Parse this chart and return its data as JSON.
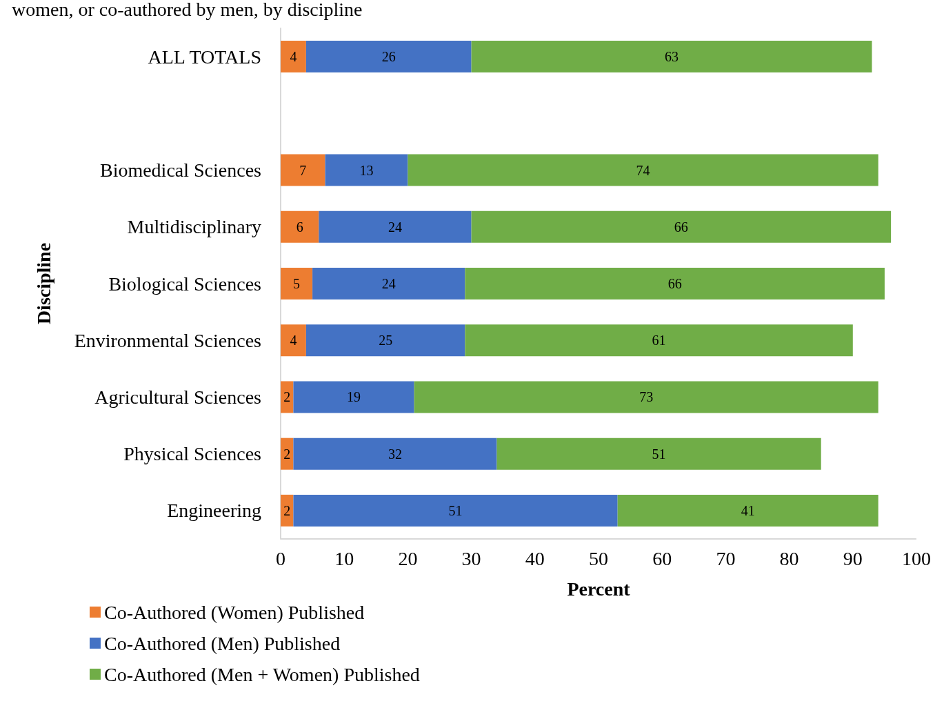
{
  "chart_data": {
    "type": "bar",
    "title": "women, or co-authored by men, by discipline",
    "orientation": "horizontal",
    "stacked": true,
    "data_labels": true,
    "legend": "bottom left",
    "xlabel": "Percent",
    "ylabel": "Discipline",
    "categories": [
      "ALL TOTALS",
      null,
      "Biomedical Sciences",
      "Multidisciplinary",
      "Biological Sciences",
      "Environmental Sciences",
      "Agricultural Sciences",
      "Physical Sciences",
      "Engineering"
    ],
    "xlim": [
      0,
      100
    ],
    "xticks": [
      0,
      10,
      20,
      30,
      40,
      50,
      60,
      70,
      80,
      90,
      100
    ],
    "series": [
      {
        "name": "Co-Authored (Women) Published",
        "color": "#ed7d31",
        "values": [
          4,
          null,
          7,
          6,
          5,
          4,
          2,
          2,
          2
        ]
      },
      {
        "name": "Co-Authored (Men) Published",
        "color": "#4472c4",
        "values": [
          26,
          null,
          13,
          24,
          24,
          25,
          19,
          32,
          51
        ]
      },
      {
        "name": "Co-Authored (Men + Women) Published",
        "color": "#70ad47",
        "values": [
          63,
          null,
          74,
          66,
          66,
          61,
          73,
          51,
          41
        ]
      }
    ]
  }
}
